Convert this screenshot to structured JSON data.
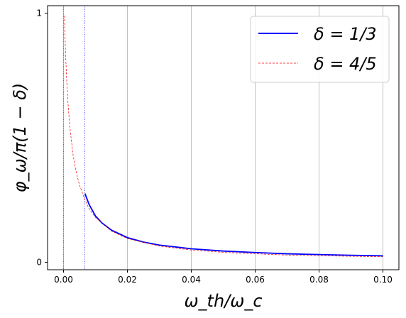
{
  "chart_data": {
    "type": "line",
    "xlabel": "ω_th/ω_c",
    "ylabel": "φ_ω/π(1 − δ)",
    "xlim": [
      -0.005,
      0.105
    ],
    "ylim": [
      -0.03,
      1.03
    ],
    "xticks": [
      0.0,
      0.02,
      0.04,
      0.06,
      0.08,
      0.1
    ],
    "xtick_labels": [
      "0.00",
      "0.02",
      "0.04",
      "0.06",
      "0.08",
      "0.10"
    ],
    "yticks": [
      0,
      1
    ],
    "ytick_labels": [
      "0",
      "1"
    ],
    "grid": "vertical",
    "legend_position": "top-right",
    "vlines": [
      {
        "x": 0.0,
        "style": "dotted",
        "color": "#ff0000"
      },
      {
        "x": 0.0067,
        "style": "dotted",
        "color": "#0000ff"
      }
    ],
    "series": [
      {
        "name": "δ = 1/3",
        "color": "#0000ff",
        "style": "solid",
        "x": [
          0.0067,
          0.008,
          0.01,
          0.012,
          0.015,
          0.02,
          0.025,
          0.03,
          0.04,
          0.05,
          0.06,
          0.07,
          0.08,
          0.09,
          0.1
        ],
        "y": [
          0.276,
          0.232,
          0.186,
          0.158,
          0.129,
          0.099,
          0.081,
          0.069,
          0.054,
          0.045,
          0.039,
          0.034,
          0.031,
          0.028,
          0.026
        ]
      },
      {
        "name": "δ = 4/5",
        "color": "#ff0000",
        "style": "dashed",
        "x": [
          0.0003,
          0.0006,
          0.001,
          0.0015,
          0.002,
          0.003,
          0.004,
          0.005,
          0.0067,
          0.008,
          0.01,
          0.015,
          0.02,
          0.03,
          0.04,
          0.05,
          0.06,
          0.07,
          0.08,
          0.09,
          0.1
        ],
        "y": [
          0.99,
          0.85,
          0.73,
          0.62,
          0.54,
          0.43,
          0.36,
          0.31,
          0.25,
          0.215,
          0.18,
          0.125,
          0.095,
          0.065,
          0.049,
          0.04,
          0.034,
          0.029,
          0.026,
          0.024,
          0.022
        ]
      }
    ]
  }
}
